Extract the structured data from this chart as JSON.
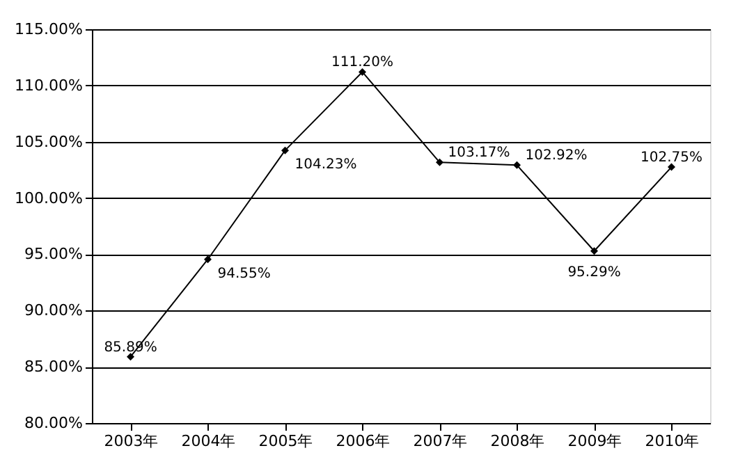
{
  "chart_data": {
    "type": "line",
    "categories": [
      "2003年",
      "2004年",
      "2005年",
      "2006年",
      "2007年",
      "2008年",
      "2009年",
      "2010年"
    ],
    "series": [
      {
        "color": "#000000",
        "values": [
          85.89,
          94.55,
          104.23,
          111.2,
          103.17,
          102.92,
          95.29,
          102.75
        ],
        "value_labels": [
          "85.89%",
          "94.55%",
          "104.23%",
          "111.20%",
          "103.17%",
          "102.92%",
          "95.29%",
          "102.75%"
        ]
      }
    ],
    "ylim": [
      80,
      115
    ],
    "yticks": [
      {
        "value": 80,
        "label": "80.00%"
      },
      {
        "value": 85,
        "label": "85.00%"
      },
      {
        "value": 90,
        "label": "90.00%"
      },
      {
        "value": 95,
        "label": "95.00%"
      },
      {
        "value": 100,
        "label": "100.00%"
      },
      {
        "value": 105,
        "label": "105.00%"
      },
      {
        "value": 110,
        "label": "110.00%"
      },
      {
        "value": 115,
        "label": "115.00%"
      }
    ],
    "grid": "y",
    "marker": "diamond",
    "line_style": "solid"
  }
}
